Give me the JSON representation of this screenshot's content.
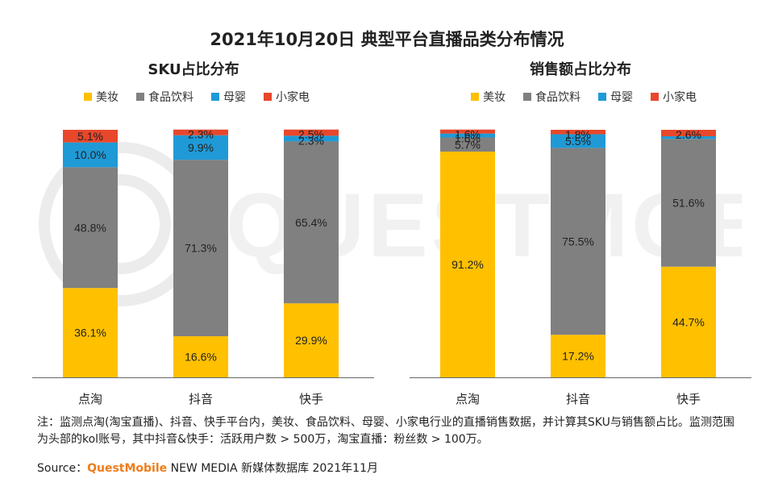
{
  "title": "2021年10月20日 典型平台直播品类分布情况",
  "watermark": "QUESTMOBILE",
  "colors": {
    "美妆": "#ffc000",
    "食品饮料": "#808080",
    "母婴": "#1f9ad6",
    "小家电": "#e8472b"
  },
  "legend": [
    "美妆",
    "食品饮料",
    "母婴",
    "小家电"
  ],
  "chart_data": [
    {
      "type": "bar",
      "stacked": true,
      "title": "SKU占比分布",
      "categories": [
        "点淘",
        "抖音",
        "快手"
      ],
      "ylim": [
        0,
        100
      ],
      "series": [
        {
          "name": "美妆",
          "values": [
            36.1,
            16.6,
            29.9
          ]
        },
        {
          "name": "食品饮料",
          "values": [
            48.8,
            71.3,
            65.4
          ]
        },
        {
          "name": "母婴",
          "values": [
            10.0,
            9.9,
            2.3
          ]
        },
        {
          "name": "小家电",
          "values": [
            5.1,
            2.3,
            2.5
          ]
        }
      ]
    },
    {
      "type": "bar",
      "stacked": true,
      "title": "销售额占比分布",
      "categories": [
        "点淘",
        "抖音",
        "快手"
      ],
      "ylim": [
        0,
        100
      ],
      "series": [
        {
          "name": "美妆",
          "values": [
            91.2,
            17.2,
            44.7
          ]
        },
        {
          "name": "食品饮料",
          "values": [
            5.7,
            75.5,
            51.6
          ]
        },
        {
          "name": "母婴",
          "values": [
            1.6,
            5.5,
            1.1
          ]
        },
        {
          "name": "小家电",
          "values": [
            1.6,
            1.8,
            2.6
          ]
        }
      ],
      "hidden_labels": [
        [
          2,
          2
        ]
      ]
    }
  ],
  "note": "注：监测点淘(淘宝直播)、抖音、快手平台内，美妆、食品饮料、母婴、小家电行业的直播销售数据，并计算其SKU与销售额占比。监测范围为头部的kol账号，其中抖音&快手：活跃用户数 > 500万，淘宝直播：粉丝数 > 100万。",
  "source": {
    "prefix": "Source：",
    "brand": "QuestMobile",
    "suffix": " NEW MEDIA 新媒体数据库 2021年11月"
  }
}
